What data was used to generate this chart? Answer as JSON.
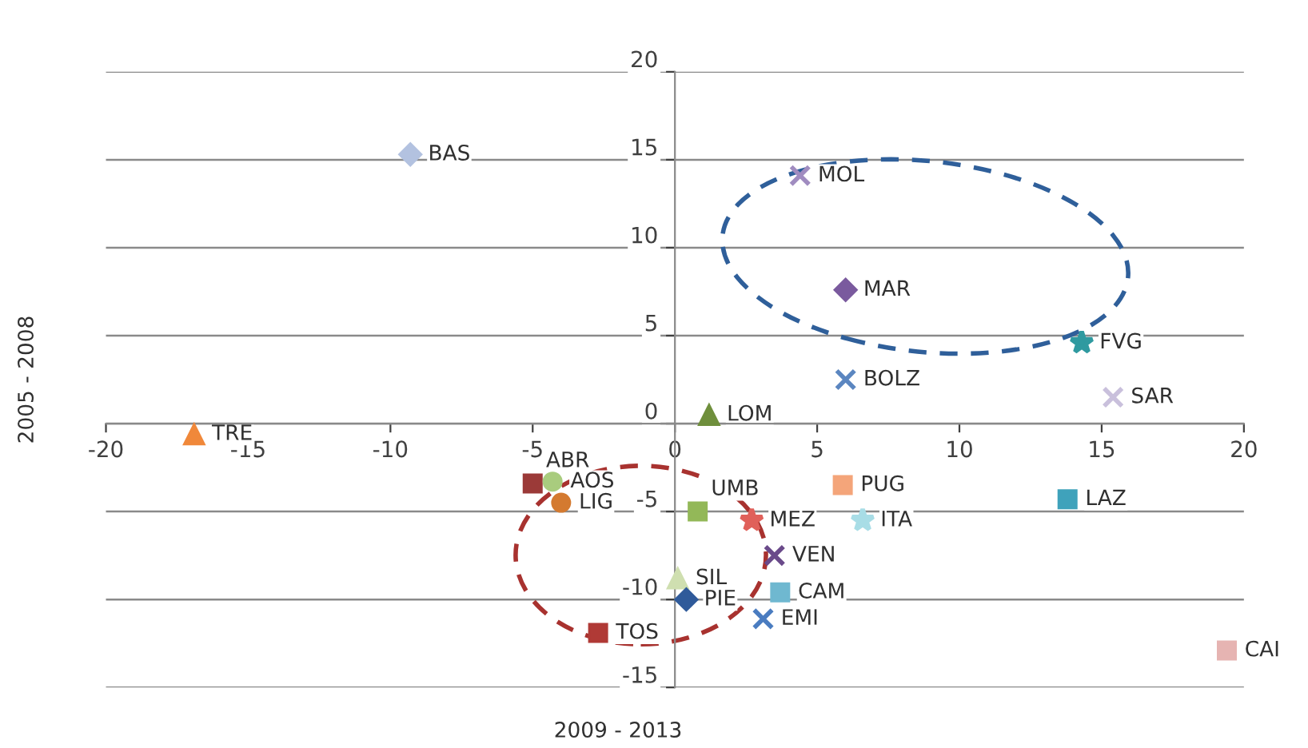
{
  "chart_data": {
    "type": "scatter",
    "xlabel": "2009 - 2013",
    "ylabel": "2005 - 2008",
    "xlim": [
      -20,
      20
    ],
    "xticks": [
      -20,
      -15,
      -10,
      -5,
      0,
      5,
      10,
      15,
      20
    ],
    "ylim": [
      -15,
      20
    ],
    "yticks": [
      -15,
      -10,
      -5,
      0,
      5,
      10,
      15,
      20
    ],
    "grid": "y",
    "legend": false,
    "series": [
      {
        "name": "BAS",
        "color": "#b3c2e0",
        "marker": "diamond",
        "x": [
          -9.3
        ],
        "values": [
          15.3
        ]
      },
      {
        "name": "TRE",
        "color": "#f0883a",
        "marker": "triangle",
        "x": [
          -16.9
        ],
        "values": [
          -0.6
        ]
      },
      {
        "name": "ABR",
        "color": "#9b3a38",
        "marker": "square",
        "x": [
          -5.0
        ],
        "values": [
          -3.4
        ]
      },
      {
        "name": "AOS",
        "color": "#a9cc7e",
        "marker": "circle",
        "x": [
          -4.3
        ],
        "values": [
          -3.3
        ]
      },
      {
        "name": "LIG",
        "color": "#d47a30",
        "marker": "circle",
        "x": [
          -4.0
        ],
        "values": [
          -4.5
        ]
      },
      {
        "name": "LOM",
        "color": "#6f8f3c",
        "marker": "triangle",
        "x": [
          1.2
        ],
        "values": [
          0.5
        ]
      },
      {
        "name": "MOL",
        "color": "#a08cc0",
        "marker": "cross",
        "x": [
          4.4
        ],
        "values": [
          14.1
        ]
      },
      {
        "name": "MAR",
        "color": "#7a5a9e",
        "marker": "diamond",
        "x": [
          6.0
        ],
        "values": [
          7.6
        ]
      },
      {
        "name": "BOLZ",
        "color": "#5b86c0",
        "marker": "cross",
        "x": [
          6.0
        ],
        "values": [
          2.5
        ]
      },
      {
        "name": "FVG",
        "color": "#2f9aa0",
        "marker": "star",
        "x": [
          14.3
        ],
        "values": [
          4.6
        ]
      },
      {
        "name": "SAR",
        "color": "#c9c0dc",
        "marker": "cross",
        "x": [
          15.4
        ],
        "values": [
          1.5
        ]
      },
      {
        "name": "PUG",
        "color": "#f4a57a",
        "marker": "square",
        "x": [
          5.9
        ],
        "values": [
          -3.5
        ]
      },
      {
        "name": "LAZ",
        "color": "#3fa2bb",
        "marker": "square",
        "x": [
          13.8
        ],
        "values": [
          -4.3
        ]
      },
      {
        "name": "UMB",
        "color": "#93b858",
        "marker": "square",
        "x": [
          0.8
        ],
        "values": [
          -5.0
        ]
      },
      {
        "name": "MEZ",
        "color": "#e0605a",
        "marker": "star",
        "x": [
          2.7
        ],
        "values": [
          -5.5
        ]
      },
      {
        "name": "ITA",
        "color": "#a8dde6",
        "marker": "star",
        "x": [
          6.6
        ],
        "values": [
          -5.5
        ]
      },
      {
        "name": "VEN",
        "color": "#6a4a8a",
        "marker": "cross",
        "x": [
          3.5
        ],
        "values": [
          -7.5
        ]
      },
      {
        "name": "SIL",
        "color": "#cfdfb0",
        "marker": "triangle",
        "x": [
          0.1
        ],
        "values": [
          -8.8
        ]
      },
      {
        "name": "PIE",
        "color": "#2f5a9a",
        "marker": "diamond",
        "x": [
          0.4
        ],
        "values": [
          -10.0
        ]
      },
      {
        "name": "CAM",
        "color": "#6fb8d0",
        "marker": "square",
        "x": [
          3.7
        ],
        "values": [
          -9.6
        ]
      },
      {
        "name": "EMI",
        "color": "#4a7cc0",
        "marker": "cross",
        "x": [
          3.1
        ],
        "values": [
          -11.1
        ]
      },
      {
        "name": "TOS",
        "color": "#b03a36",
        "marker": "square",
        "x": [
          -2.7
        ],
        "values": [
          -11.9
        ]
      },
      {
        "name": "CAI",
        "color": "#e6b4b2",
        "marker": "square",
        "x": [
          19.4
        ],
        "values": [
          -12.9
        ]
      }
    ]
  }
}
